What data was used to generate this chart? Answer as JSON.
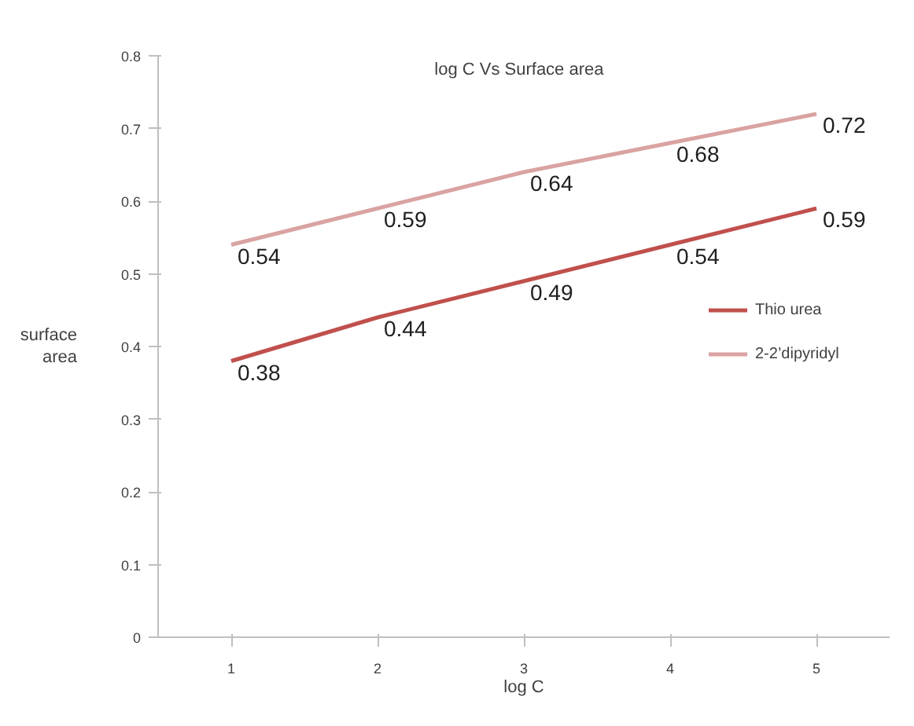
{
  "chart_data": {
    "type": "line",
    "title": "log C  Vs  Surface area",
    "xlabel": "log C",
    "ylabel": "surface area",
    "categories": [
      "1",
      "2",
      "3",
      "4",
      "5"
    ],
    "series": [
      {
        "name": "Thio urea",
        "color": "#c0504d",
        "values": [
          0.38,
          0.44,
          0.49,
          0.54,
          0.59
        ]
      },
      {
        "name": "2-2’dipyridyl",
        "color": "#d9a3a2",
        "values": [
          0.54,
          0.59,
          0.64,
          0.68,
          0.72
        ]
      }
    ],
    "ylim": [
      0,
      0.8
    ],
    "yticks": [
      0,
      0.1,
      0.2,
      0.3,
      0.4,
      0.5,
      0.6,
      0.7,
      0.8
    ],
    "data_labels": true,
    "grid": false,
    "legend": "right",
    "marker": "none",
    "line_style": "solid"
  }
}
